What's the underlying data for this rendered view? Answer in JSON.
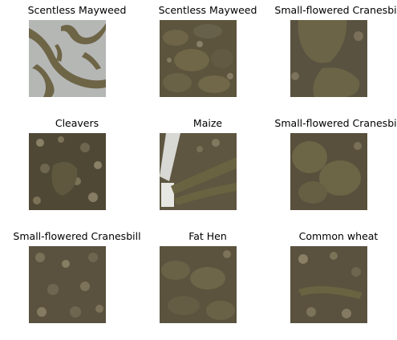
{
  "grid": {
    "items": [
      {
        "label": "Scentless Mayweed",
        "kind": "mayweed-photo"
      },
      {
        "label": "Scentless Mayweed",
        "kind": "soil-photo"
      },
      {
        "label": "Small-flowered Cranesbill",
        "kind": "cranesbill-photo"
      },
      {
        "label": "Cleavers",
        "kind": "soil-photo"
      },
      {
        "label": "Maize",
        "kind": "maize-photo"
      },
      {
        "label": "Small-flowered Cranesbill",
        "kind": "cranesbill-photo"
      },
      {
        "label": "Small-flowered Cranesbill",
        "kind": "soil-photo"
      },
      {
        "label": "Fat Hen",
        "kind": "soil-photo"
      },
      {
        "label": "Common wheat",
        "kind": "soil-photo"
      }
    ]
  },
  "colors": {
    "soil_dark": "#4a4233",
    "soil_mid": "#6b6147",
    "leaf": "#6d6542",
    "grey_bg": "#b6b8b6"
  }
}
